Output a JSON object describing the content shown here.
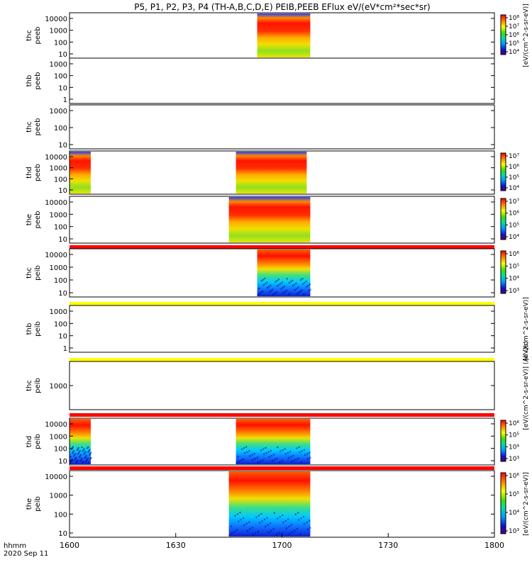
{
  "title": "P5, P1, P2, P3, P4 (TH-A,B,C,D,E) PEIB,PEEB EFlux eV/(eV*cm²*sec*sr)",
  "colorbar_label": "[eV/(cm^2-s-sr-eV)]",
  "colorbar_label_alt": "[eV/(cm^2-s-sr-eV)] (All Qs)",
  "x_axis_label": "hhmm",
  "x_axis_date": "2020 Sep 11",
  "colors": {
    "frame": "#000000",
    "red_band": "#ff0000",
    "yellow_band": "#ffff00"
  },
  "chart_data": {
    "type": "heatmap",
    "xlim": [
      "16:00",
      "18:00"
    ],
    "x_tick_labels": [
      "1600",
      "1630",
      "1700",
      "1730",
      "1800"
    ],
    "panels": [
      {
        "ylabel_1": "thc",
        "ylabel_2": "peeb",
        "yticks": [
          "10",
          "100",
          "1000",
          "10000"
        ],
        "colorbar_ticks": [
          "10⁴",
          "10⁵",
          "10⁶",
          "10⁷",
          "10⁸"
        ],
        "colorbar_label": "[eV/(cm^2-s-sr-eV)]",
        "data_intervals": [
          [
            "16:53",
            "17:08"
          ]
        ],
        "style": "electron"
      },
      {
        "ylabel_1": "thb",
        "ylabel_2": "peeb",
        "yticks": [
          "1",
          "10",
          "100",
          "1000"
        ],
        "data_intervals": []
      },
      {
        "ylabel_1": "thc",
        "ylabel_2": "peeb",
        "yticks": [
          "10",
          "100",
          "1000"
        ],
        "data_intervals": []
      },
      {
        "ylabel_1": "thd",
        "ylabel_2": "peeb",
        "yticks": [
          "10",
          "100",
          "1000",
          "10000"
        ],
        "colorbar_ticks": [
          "10⁴",
          "10⁵",
          "10⁶",
          "10⁷"
        ],
        "data_intervals": [
          [
            "16:00",
            "16:06"
          ],
          [
            "16:47",
            "17:07"
          ]
        ],
        "style": "electron"
      },
      {
        "ylabel_1": "the",
        "ylabel_2": "peeb",
        "yticks": [
          "10",
          "100",
          "1000",
          "10000"
        ],
        "colorbar_ticks": [
          "10⁴",
          "10⁵",
          "10⁶",
          "10⁷"
        ],
        "data_intervals": [
          [
            "16:45",
            "17:08"
          ]
        ],
        "style": "electron",
        "band_below": "red"
      },
      {
        "ylabel_1": "thc",
        "ylabel_2": "peib",
        "yticks": [
          "10",
          "100",
          "1000",
          "10000"
        ],
        "colorbar_ticks": [
          "10³",
          "10⁴",
          "10⁵",
          "10⁶"
        ],
        "data_intervals": [
          [
            "16:53",
            "17:08"
          ]
        ],
        "style": "ion",
        "band_below": "yellow"
      },
      {
        "ylabel_1": "thb",
        "ylabel_2": "peib",
        "yticks": [
          "1",
          "10",
          "100",
          "1000"
        ],
        "colorbar_label": "[eV/(cm^2-s-sr-eV)]",
        "data_intervals": [],
        "band_below": "yellow"
      },
      {
        "ylabel_1": "thc",
        "ylabel_2": "peib",
        "yticks": [
          "1000"
        ],
        "colorbar_label": "[eV/(cm^2-s-sr-eV)] (All Qs)",
        "data_intervals": [],
        "band_below": "red"
      },
      {
        "ylabel_1": "thd",
        "ylabel_2": "peib",
        "yticks": [
          "10",
          "100",
          "1000",
          "10000"
        ],
        "colorbar_ticks": [
          "10³",
          "10⁴",
          "10⁵",
          "10⁶"
        ],
        "data_intervals": [
          [
            "16:00",
            "16:06"
          ],
          [
            "16:47",
            "17:08"
          ]
        ],
        "style": "ion",
        "band_below": "red"
      },
      {
        "ylabel_1": "the",
        "ylabel_2": "peib",
        "yticks": [
          "10",
          "100",
          "1000",
          "10000"
        ],
        "colorbar_ticks": [
          "10³",
          "10⁴",
          "10⁵",
          "10⁶"
        ],
        "colorbar_label": "[eV/(cm^2-s-sr-eV)]",
        "data_intervals": [
          [
            "16:45",
            "17:08"
          ]
        ],
        "style": "ion"
      }
    ]
  }
}
